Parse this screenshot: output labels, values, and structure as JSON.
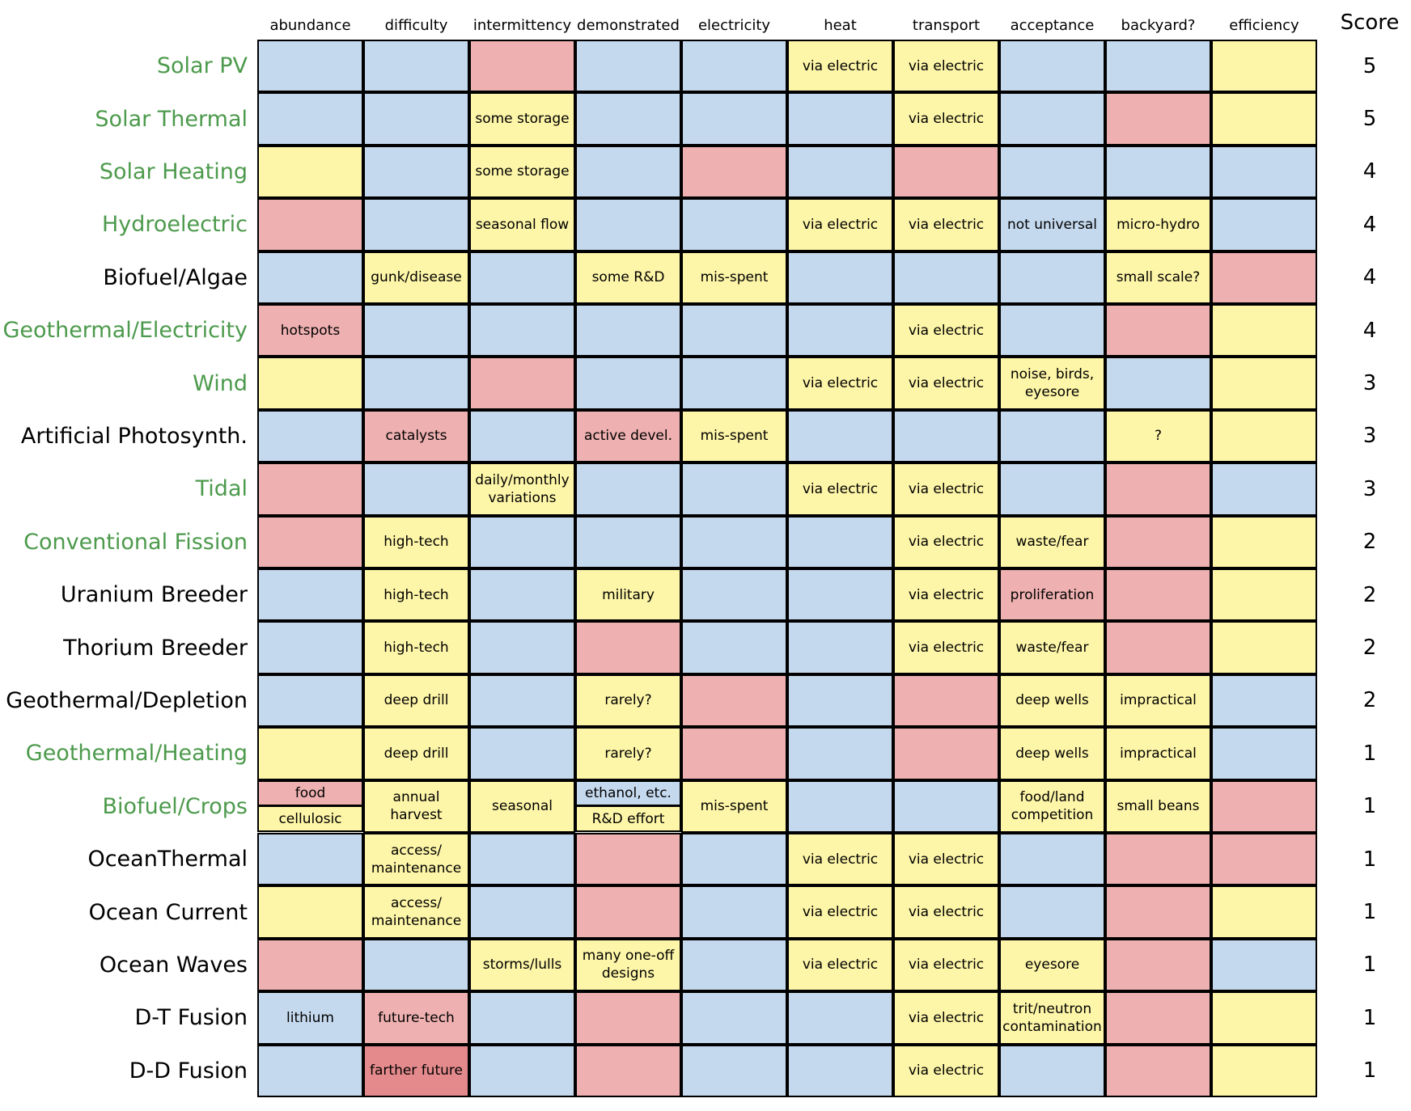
{
  "colors": {
    "blue": "#c5d9ee",
    "pink": "#eeb0b0",
    "yellow": "#fdf5a7",
    "red": "#e58a8c",
    "green": "#4c9a4c",
    "black": "#000000"
  },
  "score_header": "Score",
  "columns": [
    "abundance",
    "difficulty",
    "intermittency",
    "demonstrated",
    "electricity",
    "heat",
    "transport",
    "acceptance",
    "backyard?",
    "efficiency"
  ],
  "rows": [
    {
      "name": "Solar PV",
      "label_color": "green",
      "score": 5,
      "cells": [
        {
          "color": "blue"
        },
        {
          "color": "blue"
        },
        {
          "color": "pink"
        },
        {
          "color": "blue"
        },
        {
          "color": "blue"
        },
        {
          "color": "yellow",
          "text": "via electric"
        },
        {
          "color": "yellow",
          "text": "via electric"
        },
        {
          "color": "blue"
        },
        {
          "color": "blue"
        },
        {
          "color": "yellow"
        }
      ]
    },
    {
      "name": "Solar Thermal",
      "label_color": "green",
      "score": 5,
      "cells": [
        {
          "color": "blue"
        },
        {
          "color": "blue"
        },
        {
          "color": "yellow",
          "text": "some storage"
        },
        {
          "color": "blue"
        },
        {
          "color": "blue"
        },
        {
          "color": "blue"
        },
        {
          "color": "yellow",
          "text": "via electric"
        },
        {
          "color": "blue"
        },
        {
          "color": "pink"
        },
        {
          "color": "yellow"
        }
      ]
    },
    {
      "name": "Solar Heating",
      "label_color": "green",
      "score": 4,
      "cells": [
        {
          "color": "yellow"
        },
        {
          "color": "blue"
        },
        {
          "color": "yellow",
          "text": "some storage"
        },
        {
          "color": "blue"
        },
        {
          "color": "pink"
        },
        {
          "color": "blue"
        },
        {
          "color": "pink"
        },
        {
          "color": "blue"
        },
        {
          "color": "blue"
        },
        {
          "color": "blue"
        }
      ]
    },
    {
      "name": "Hydroelectric",
      "label_color": "green",
      "score": 4,
      "cells": [
        {
          "color": "pink"
        },
        {
          "color": "blue"
        },
        {
          "color": "yellow",
          "text": "seasonal flow"
        },
        {
          "color": "blue"
        },
        {
          "color": "blue"
        },
        {
          "color": "yellow",
          "text": "via electric"
        },
        {
          "color": "yellow",
          "text": "via electric"
        },
        {
          "color": "blue",
          "text": "not universal"
        },
        {
          "color": "yellow",
          "text": "micro-hydro"
        },
        {
          "color": "blue"
        }
      ]
    },
    {
      "name": "Biofuel/Algae",
      "label_color": "black",
      "score": 4,
      "cells": [
        {
          "color": "blue"
        },
        {
          "color": "yellow",
          "text": "gunk/disease"
        },
        {
          "color": "blue"
        },
        {
          "color": "yellow",
          "text": "some R&D"
        },
        {
          "color": "yellow",
          "text": "mis-spent"
        },
        {
          "color": "blue"
        },
        {
          "color": "blue"
        },
        {
          "color": "blue"
        },
        {
          "color": "yellow",
          "text": "small scale?"
        },
        {
          "color": "pink"
        }
      ]
    },
    {
      "name": "Geothermal/Electricity",
      "label_color": "green",
      "score": 4,
      "cells": [
        {
          "color": "pink",
          "text": "hotspots"
        },
        {
          "color": "blue"
        },
        {
          "color": "blue"
        },
        {
          "color": "blue"
        },
        {
          "color": "blue"
        },
        {
          "color": "blue"
        },
        {
          "color": "yellow",
          "text": "via electric"
        },
        {
          "color": "blue"
        },
        {
          "color": "pink"
        },
        {
          "color": "yellow"
        }
      ]
    },
    {
      "name": "Wind",
      "label_color": "green",
      "score": 3,
      "cells": [
        {
          "color": "yellow"
        },
        {
          "color": "blue"
        },
        {
          "color": "pink"
        },
        {
          "color": "blue"
        },
        {
          "color": "blue"
        },
        {
          "color": "yellow",
          "text": "via electric"
        },
        {
          "color": "yellow",
          "text": "via electric"
        },
        {
          "color": "yellow",
          "text": "noise, birds, eyesore"
        },
        {
          "color": "blue"
        },
        {
          "color": "yellow"
        }
      ]
    },
    {
      "name": "Artificial Photosynth.",
      "label_color": "black",
      "score": 3,
      "cells": [
        {
          "color": "blue"
        },
        {
          "color": "pink",
          "text": "catalysts"
        },
        {
          "color": "blue"
        },
        {
          "color": "pink",
          "text": "active devel."
        },
        {
          "color": "yellow",
          "text": "mis-spent"
        },
        {
          "color": "blue"
        },
        {
          "color": "blue"
        },
        {
          "color": "blue"
        },
        {
          "color": "yellow",
          "text": "?"
        },
        {
          "color": "yellow"
        }
      ]
    },
    {
      "name": "Tidal",
      "label_color": "green",
      "score": 3,
      "cells": [
        {
          "color": "pink"
        },
        {
          "color": "blue"
        },
        {
          "color": "yellow",
          "text": "daily/monthly variations"
        },
        {
          "color": "blue"
        },
        {
          "color": "blue"
        },
        {
          "color": "yellow",
          "text": "via electric"
        },
        {
          "color": "yellow",
          "text": "via electric"
        },
        {
          "color": "blue"
        },
        {
          "color": "pink"
        },
        {
          "color": "blue"
        }
      ]
    },
    {
      "name": "Conventional Fission",
      "label_color": "green",
      "score": 2,
      "cells": [
        {
          "color": "pink"
        },
        {
          "color": "yellow",
          "text": "high-tech"
        },
        {
          "color": "blue"
        },
        {
          "color": "blue"
        },
        {
          "color": "blue"
        },
        {
          "color": "blue"
        },
        {
          "color": "yellow",
          "text": "via electric"
        },
        {
          "color": "yellow",
          "text": "waste/fear"
        },
        {
          "color": "pink"
        },
        {
          "color": "yellow"
        }
      ]
    },
    {
      "name": "Uranium Breeder",
      "label_color": "black",
      "score": 2,
      "cells": [
        {
          "color": "blue"
        },
        {
          "color": "yellow",
          "text": "high-tech"
        },
        {
          "color": "blue"
        },
        {
          "color": "yellow",
          "text": "military"
        },
        {
          "color": "blue"
        },
        {
          "color": "blue"
        },
        {
          "color": "yellow",
          "text": "via electric"
        },
        {
          "color": "pink",
          "text": "proliferation"
        },
        {
          "color": "pink"
        },
        {
          "color": "yellow"
        }
      ]
    },
    {
      "name": "Thorium Breeder",
      "label_color": "black",
      "score": 2,
      "cells": [
        {
          "color": "blue"
        },
        {
          "color": "yellow",
          "text": "high-tech"
        },
        {
          "color": "blue"
        },
        {
          "color": "pink"
        },
        {
          "color": "blue"
        },
        {
          "color": "blue"
        },
        {
          "color": "yellow",
          "text": "via electric"
        },
        {
          "color": "yellow",
          "text": "waste/fear"
        },
        {
          "color": "pink"
        },
        {
          "color": "yellow"
        }
      ]
    },
    {
      "name": "Geothermal/Depletion",
      "label_color": "black",
      "score": 2,
      "cells": [
        {
          "color": "blue"
        },
        {
          "color": "yellow",
          "text": "deep drill"
        },
        {
          "color": "blue"
        },
        {
          "color": "yellow",
          "text": "rarely?"
        },
        {
          "color": "pink"
        },
        {
          "color": "blue"
        },
        {
          "color": "pink"
        },
        {
          "color": "yellow",
          "text": "deep wells"
        },
        {
          "color": "yellow",
          "text": "impractical"
        },
        {
          "color": "blue"
        }
      ]
    },
    {
      "name": "Geothermal/Heating",
      "label_color": "green",
      "score": 1,
      "cells": [
        {
          "color": "yellow"
        },
        {
          "color": "yellow",
          "text": "deep drill"
        },
        {
          "color": "blue"
        },
        {
          "color": "yellow",
          "text": "rarely?"
        },
        {
          "color": "pink"
        },
        {
          "color": "blue"
        },
        {
          "color": "pink"
        },
        {
          "color": "yellow",
          "text": "deep wells"
        },
        {
          "color": "yellow",
          "text": "impractical"
        },
        {
          "color": "blue"
        }
      ]
    },
    {
      "name": "Biofuel/Crops",
      "label_color": "green",
      "score": 1,
      "cells": [
        {
          "parts": [
            {
              "color": "pink",
              "text": "food"
            },
            {
              "color": "yellow",
              "text": "cellulosic"
            }
          ]
        },
        {
          "color": "yellow",
          "text": "annual harvest"
        },
        {
          "color": "yellow",
          "text": "seasonal"
        },
        {
          "parts": [
            {
              "color": "blue",
              "text": "ethanol, etc."
            },
            {
              "color": "yellow",
              "text": "R&D effort"
            }
          ]
        },
        {
          "color": "yellow",
          "text": "mis-spent"
        },
        {
          "color": "blue"
        },
        {
          "color": "blue"
        },
        {
          "color": "yellow",
          "text": "food/land competition"
        },
        {
          "color": "yellow",
          "text": "small beans"
        },
        {
          "color": "pink"
        }
      ]
    },
    {
      "name": "OceanThermal",
      "label_color": "black",
      "score": 1,
      "cells": [
        {
          "color": "blue"
        },
        {
          "color": "yellow",
          "text": "access/ maintenance"
        },
        {
          "color": "blue"
        },
        {
          "color": "pink"
        },
        {
          "color": "blue"
        },
        {
          "color": "yellow",
          "text": "via electric"
        },
        {
          "color": "yellow",
          "text": "via electric"
        },
        {
          "color": "blue"
        },
        {
          "color": "pink"
        },
        {
          "color": "pink"
        }
      ]
    },
    {
      "name": "Ocean Current",
      "label_color": "black",
      "score": 1,
      "cells": [
        {
          "color": "yellow"
        },
        {
          "color": "yellow",
          "text": "access/ maintenance"
        },
        {
          "color": "blue"
        },
        {
          "color": "pink"
        },
        {
          "color": "blue"
        },
        {
          "color": "yellow",
          "text": "via electric"
        },
        {
          "color": "yellow",
          "text": "via electric"
        },
        {
          "color": "blue"
        },
        {
          "color": "pink"
        },
        {
          "color": "yellow"
        }
      ]
    },
    {
      "name": "Ocean Waves",
      "label_color": "black",
      "score": 1,
      "cells": [
        {
          "color": "pink"
        },
        {
          "color": "blue"
        },
        {
          "color": "yellow",
          "text": "storms/lulls"
        },
        {
          "color": "yellow",
          "text": "many one-off designs"
        },
        {
          "color": "blue"
        },
        {
          "color": "yellow",
          "text": "via electric"
        },
        {
          "color": "yellow",
          "text": "via electric"
        },
        {
          "color": "yellow",
          "text": "eyesore"
        },
        {
          "color": "pink"
        },
        {
          "color": "blue"
        }
      ]
    },
    {
      "name": "D-T Fusion",
      "label_color": "black",
      "score": 1,
      "cells": [
        {
          "color": "blue",
          "text": "lithium"
        },
        {
          "color": "pink",
          "text": "future-tech"
        },
        {
          "color": "blue"
        },
        {
          "color": "pink"
        },
        {
          "color": "blue"
        },
        {
          "color": "blue"
        },
        {
          "color": "yellow",
          "text": "via electric"
        },
        {
          "color": "yellow",
          "text": "trit/neutron contamination"
        },
        {
          "color": "pink"
        },
        {
          "color": "yellow"
        }
      ]
    },
    {
      "name": "D-D Fusion",
      "label_color": "black",
      "score": 1,
      "cells": [
        {
          "color": "blue"
        },
        {
          "color": "red",
          "text": "farther future"
        },
        {
          "color": "blue"
        },
        {
          "color": "pink"
        },
        {
          "color": "blue"
        },
        {
          "color": "blue"
        },
        {
          "color": "yellow",
          "text": "via electric"
        },
        {
          "color": "blue"
        },
        {
          "color": "pink"
        },
        {
          "color": "yellow"
        }
      ]
    }
  ]
}
